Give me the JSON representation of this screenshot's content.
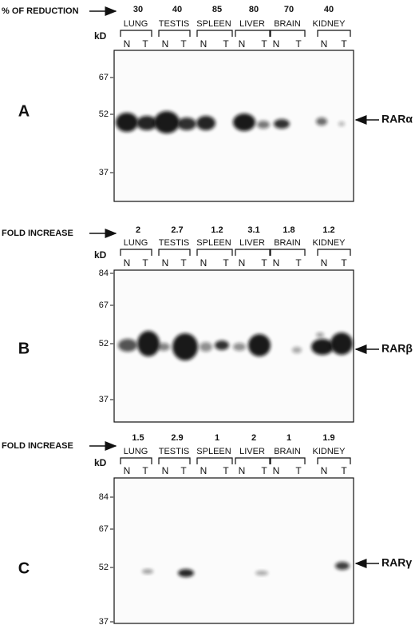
{
  "panels": [
    {
      "letter": "A",
      "header": "% OF REDUCTION",
      "values": [
        30,
        40,
        85,
        80,
        70,
        40
      ],
      "tissues": [
        "LUNG",
        "TESTIS",
        "SPLEEN",
        "LIVER",
        "BRAIN",
        "KIDNEY"
      ],
      "lanes": [
        "N",
        "T"
      ],
      "unit": "kD",
      "markers": [
        67,
        52,
        37
      ],
      "protein": "RARα"
    },
    {
      "letter": "B",
      "header": "FOLD INCREASE",
      "values": [
        2,
        2.7,
        1.2,
        3.1,
        1.8,
        1.2
      ],
      "tissues": [
        "LUNG",
        "TESTIS",
        "SPLEEN",
        "LIVER",
        "BRAIN",
        "KIDNEY"
      ],
      "lanes": [
        "N",
        "T"
      ],
      "unit": "kD",
      "markers": [
        84,
        67,
        52,
        37
      ],
      "protein": "RARβ"
    },
    {
      "letter": "C",
      "header": "FOLD INCREASE",
      "values": [
        1.5,
        2.9,
        1,
        2,
        1,
        1.9
      ],
      "tissues": [
        "LUNG",
        "TESTIS",
        "SPLEEN",
        "LIVER",
        "BRAIN",
        "KIDNEY"
      ],
      "lanes": [
        "N",
        "T"
      ],
      "unit": "kD",
      "markers": [
        84,
        67,
        52,
        37
      ],
      "protein": "RARγ"
    }
  ]
}
